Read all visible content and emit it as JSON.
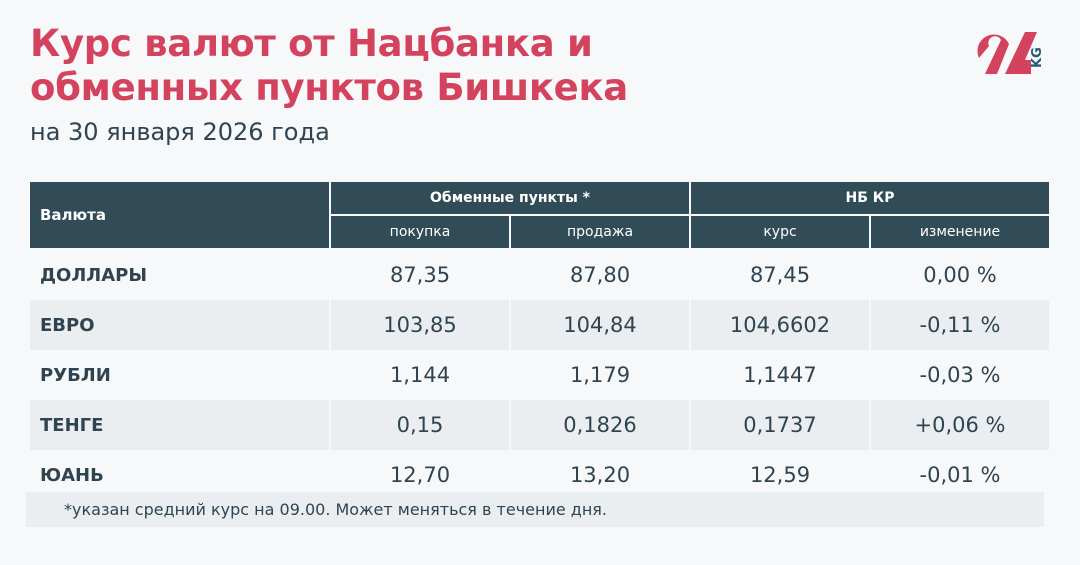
{
  "header": {
    "title_line1": "Курс валют от Нацбанка и",
    "title_line2": "обменных пунктов Бишкека",
    "subtitle": "на 30 января 2026 года",
    "logo_text": "24 KG"
  },
  "colors": {
    "accent": "#d4435d",
    "header_bg": "#314b57",
    "row_alt": "#eaeef0",
    "background": "#f7f8fa"
  },
  "table": {
    "col_currency": "Валюта",
    "group_exchange": "Обменные пункты *",
    "group_nbkr": "НБ КР",
    "sub_buy": "покупка",
    "sub_sell": "продажа",
    "sub_rate": "курс",
    "sub_change": "изменение",
    "rows": [
      {
        "name": "ДОЛЛАРЫ",
        "buy": "87,35",
        "sell": "87,80",
        "rate": "87,45",
        "change": "0,00 %"
      },
      {
        "name": "ЕВРО",
        "buy": "103,85",
        "sell": "104,84",
        "rate": "104,6602",
        "change": "-0,11 %"
      },
      {
        "name": "РУБЛИ",
        "buy": "1,144",
        "sell": "1,179",
        "rate": "1,1447",
        "change": "-0,03 %"
      },
      {
        "name": "ТЕНГЕ",
        "buy": "0,15",
        "sell": "0,1826",
        "rate": "0,1737",
        "change": "+0,06 %"
      },
      {
        "name": "ЮАНЬ",
        "buy": "12,70",
        "sell": "13,20",
        "rate": "12,59",
        "change": "-0,01 %"
      }
    ]
  },
  "footnote": "*указан средний курс на 09.00. Может меняться в течение дня."
}
